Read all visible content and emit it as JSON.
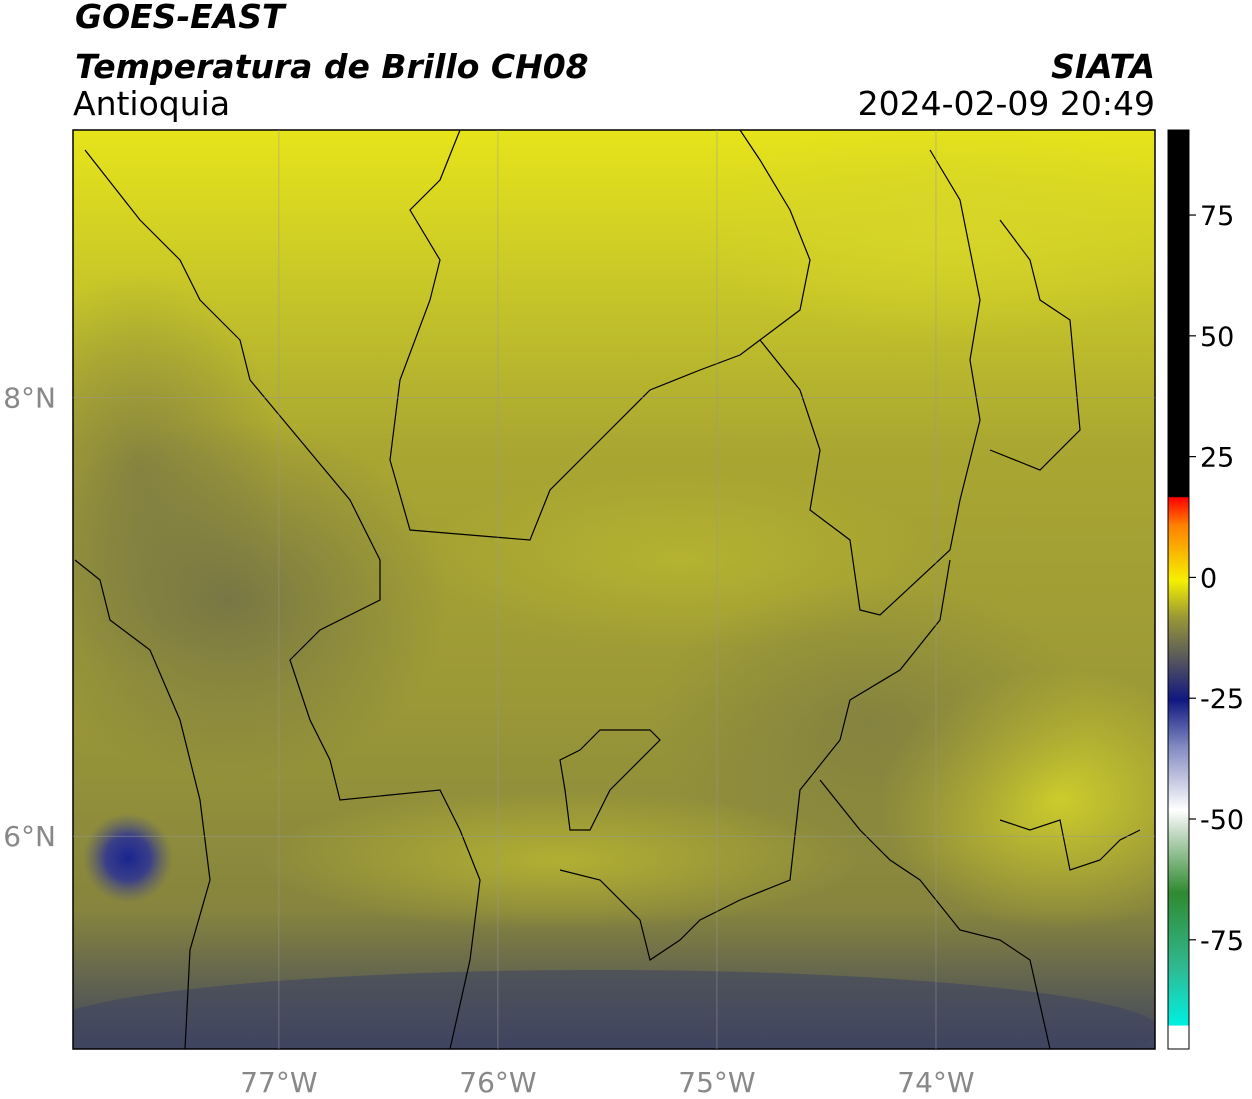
{
  "header": {
    "title": "GOES-EAST",
    "subtitle": "Temperatura de Brillo CH08",
    "region": "Antioquia",
    "source": "SIATA",
    "datetime": "2024-02-09 20:49"
  },
  "map": {
    "xlim": [
      -77.94,
      -73.0
    ],
    "ylim": [
      5.03,
      9.22
    ],
    "xticks": [
      {
        "value": -77,
        "label": "77°W"
      },
      {
        "value": -76,
        "label": "76°W"
      },
      {
        "value": -75,
        "label": "75°W"
      },
      {
        "value": -74,
        "label": "74°W"
      }
    ],
    "yticks": [
      {
        "value": 8,
        "label": "8°N"
      },
      {
        "value": 6,
        "label": "6°N"
      }
    ],
    "grid": true
  },
  "colorbar": {
    "lim": [
      -97.6,
      92.6
    ],
    "ticks": [
      75,
      50,
      25,
      0,
      -25,
      -50,
      -75
    ]
  }
}
